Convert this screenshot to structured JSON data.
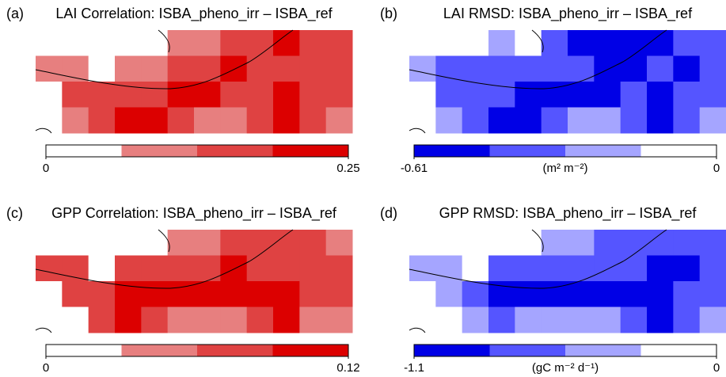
{
  "chart_data": [
    {
      "type": "heatmap",
      "panel_label": "(a)",
      "title": "LAI Correlation: ISBA_pheno_irr – ISBA_ref",
      "zlim": [
        0,
        0.25
      ],
      "zticks": [
        0,
        0.25
      ],
      "colors": [
        "#ffffff",
        "#e77f7f",
        "#df4242",
        "#dc0000"
      ],
      "z": [
        [
          0.03,
          0.03,
          0.03,
          0.03,
          0.03,
          0.09,
          0.09,
          0.16,
          0.16,
          0.22,
          0.16,
          0.16
        ],
        [
          0.09,
          0.09,
          0.03,
          0.09,
          0.09,
          0.16,
          0.16,
          0.22,
          0.16,
          0.16,
          0.16,
          0.16
        ],
        [
          0.03,
          0.16,
          0.16,
          0.16,
          0.16,
          0.22,
          0.22,
          0.16,
          0.16,
          0.22,
          0.16,
          0.16
        ],
        [
          0.03,
          0.09,
          0.16,
          0.22,
          0.22,
          0.16,
          0.09,
          0.09,
          0.16,
          0.22,
          0.16,
          0.09
        ]
      ]
    },
    {
      "type": "heatmap",
      "panel_label": "(b)",
      "title": "LAI RMSD: ISBA_pheno_irr – ISBA_ref",
      "zlim": [
        -0.61,
        0
      ],
      "zticks": [
        -0.61,
        0
      ],
      "unit_label": "(m² m⁻²)",
      "colors": [
        "#0000e6",
        "#5555ff",
        "#a5a5ff",
        "#ffffff"
      ],
      "z": [
        [
          -0.08,
          -0.08,
          -0.08,
          -0.23,
          -0.08,
          -0.38,
          -0.53,
          -0.53,
          -0.53,
          -0.53,
          -0.38,
          -0.38
        ],
        [
          -0.23,
          -0.38,
          -0.38,
          -0.38,
          -0.38,
          -0.38,
          -0.38,
          -0.53,
          -0.53,
          -0.38,
          -0.53,
          -0.38
        ],
        [
          -0.08,
          -0.38,
          -0.38,
          -0.38,
          -0.53,
          -0.53,
          -0.53,
          -0.53,
          -0.38,
          -0.53,
          -0.38,
          -0.38
        ],
        [
          -0.08,
          -0.23,
          -0.38,
          -0.53,
          -0.53,
          -0.38,
          -0.23,
          -0.23,
          -0.38,
          -0.53,
          -0.38,
          -0.23
        ]
      ]
    },
    {
      "type": "heatmap",
      "panel_label": "(c)",
      "title": "GPP Correlation: ISBA_pheno_irr – ISBA_ref",
      "zlim": [
        0,
        0.12
      ],
      "zticks": [
        0,
        0.12
      ],
      "colors": [
        "#ffffff",
        "#e77f7f",
        "#df4242",
        "#dc0000"
      ],
      "z": [
        [
          0.015,
          0.015,
          0.015,
          0.015,
          0.015,
          0.045,
          0.045,
          0.075,
          0.075,
          0.075,
          0.075,
          0.045
        ],
        [
          0.075,
          0.075,
          0.015,
          0.075,
          0.075,
          0.075,
          0.075,
          0.105,
          0.075,
          0.075,
          0.075,
          0.075
        ],
        [
          0.015,
          0.075,
          0.075,
          0.105,
          0.105,
          0.105,
          0.105,
          0.105,
          0.105,
          0.105,
          0.075,
          0.075
        ],
        [
          0.015,
          0.015,
          0.075,
          0.105,
          0.075,
          0.045,
          0.045,
          0.045,
          0.075,
          0.105,
          0.045,
          0.045
        ]
      ]
    },
    {
      "type": "heatmap",
      "panel_label": "(d)",
      "title": "GPP RMSD: ISBA_pheno_irr – ISBA_ref",
      "zlim": [
        -1.1,
        0
      ],
      "zticks": [
        -1.1,
        0
      ],
      "unit_label": "(gC m⁻² d⁻¹)",
      "colors": [
        "#0000e6",
        "#5555ff",
        "#a5a5ff",
        "#ffffff"
      ],
      "z": [
        [
          -0.14,
          -0.14,
          -0.14,
          -0.14,
          -0.14,
          -0.41,
          -0.41,
          -0.69,
          -0.69,
          -0.69,
          -0.69,
          -0.69
        ],
        [
          -0.41,
          -0.41,
          -0.14,
          -0.69,
          -0.69,
          -0.69,
          -0.69,
          -0.69,
          -0.69,
          -0.96,
          -0.96,
          -0.69
        ],
        [
          -0.14,
          -0.41,
          -0.69,
          -0.96,
          -0.96,
          -0.96,
          -0.96,
          -0.96,
          -0.96,
          -0.96,
          -0.69,
          -0.69
        ],
        [
          -0.14,
          -0.14,
          -0.41,
          -0.69,
          -0.41,
          -0.41,
          -0.41,
          -0.41,
          -0.69,
          -0.96,
          -0.69,
          -0.41
        ]
      ]
    }
  ]
}
